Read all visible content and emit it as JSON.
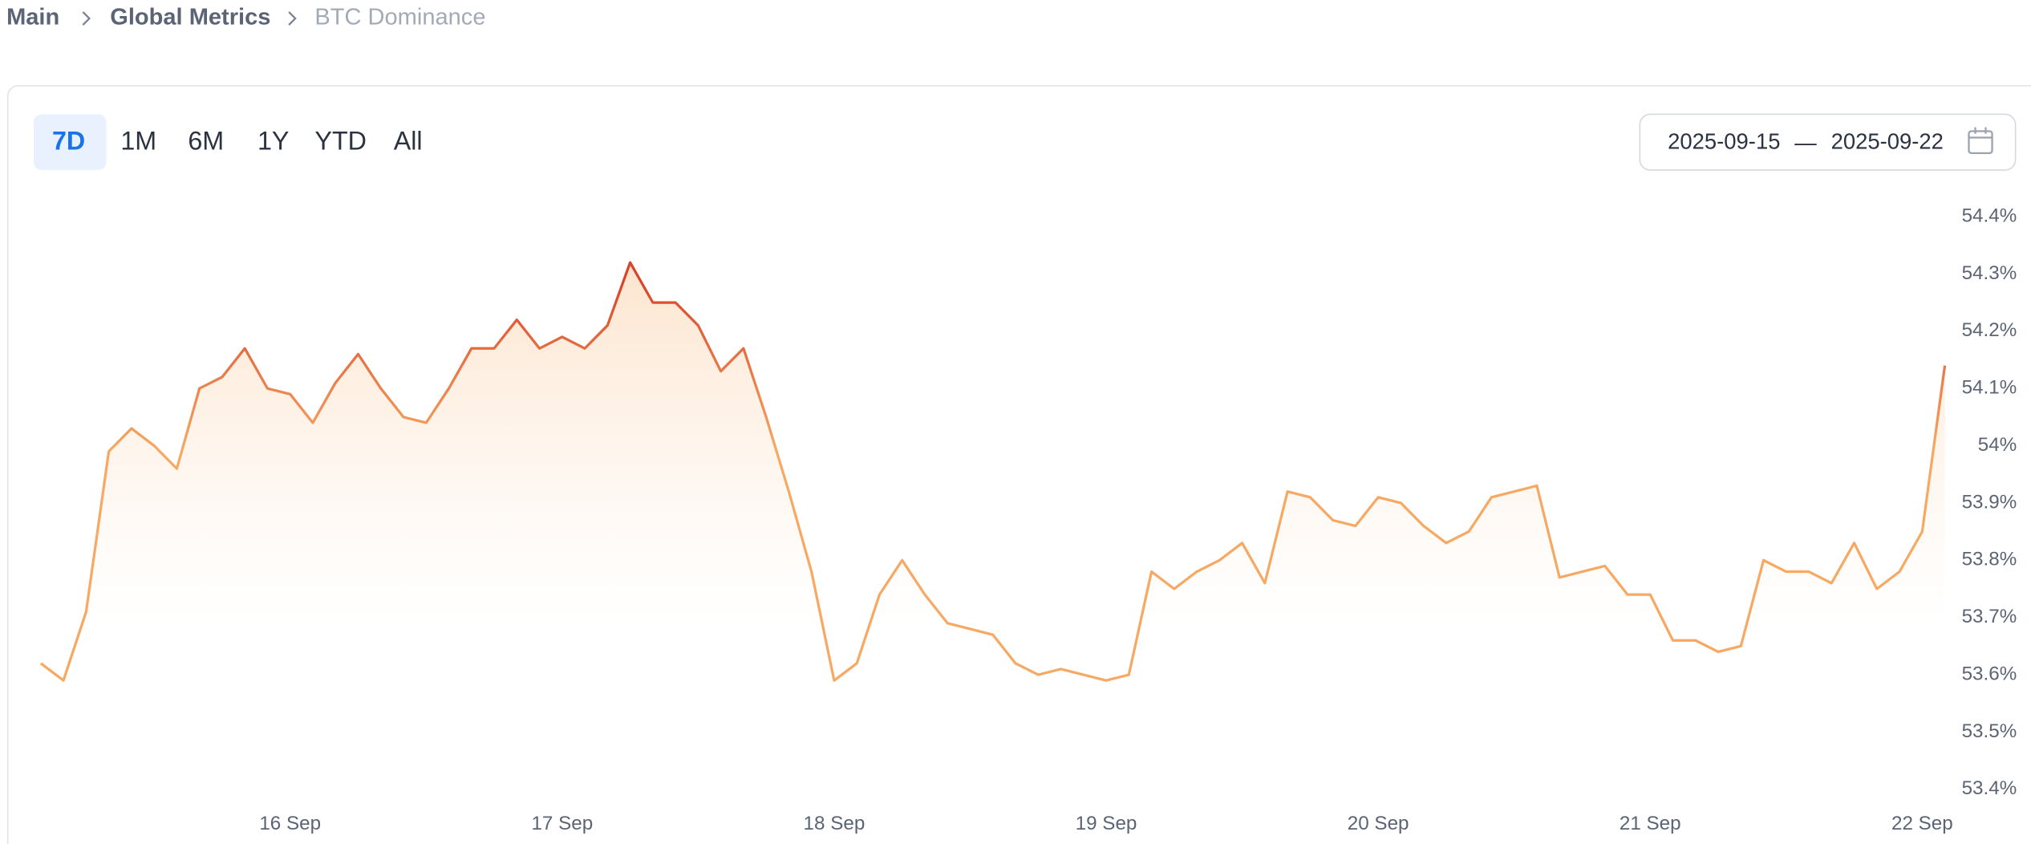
{
  "breadcrumb": [
    "Main",
    "Global Metrics",
    "BTC Dominance"
  ],
  "ranges": [
    "7D",
    "1M",
    "6M",
    "1Y",
    "YTD",
    "All"
  ],
  "date_range": {
    "start": "2025-09-15",
    "separator": "—",
    "end": "2025-09-22"
  },
  "chart_data": {
    "type": "line",
    "categories": [
      null,
      null,
      null,
      null,
      null,
      null,
      null,
      null,
      null,
      null,
      null,
      "16 Sep",
      null,
      null,
      null,
      null,
      null,
      null,
      null,
      null,
      null,
      null,
      null,
      "17 Sep",
      null,
      null,
      null,
      null,
      null,
      null,
      null,
      null,
      null,
      null,
      null,
      "18 Sep",
      null,
      null,
      null,
      null,
      null,
      null,
      null,
      null,
      null,
      null,
      null,
      "19 Sep",
      null,
      null,
      null,
      null,
      null,
      null,
      null,
      null,
      null,
      null,
      null,
      "20 Sep",
      null,
      null,
      null,
      null,
      null,
      null,
      null,
      null,
      null,
      null,
      null,
      "21 Sep",
      null,
      null,
      null,
      null,
      null,
      null,
      null,
      null,
      null,
      null,
      null,
      "22 Sep",
      null
    ],
    "values": [
      53.62,
      53.59,
      53.71,
      53.99,
      54.03,
      54.0,
      53.96,
      54.1,
      54.12,
      54.17,
      54.1,
      54.09,
      54.04,
      54.11,
      54.16,
      54.1,
      54.05,
      54.04,
      54.1,
      54.17,
      54.17,
      54.22,
      54.17,
      54.19,
      54.17,
      54.21,
      54.32,
      54.25,
      54.25,
      54.21,
      54.13,
      54.17,
      54.05,
      53.92,
      53.78,
      53.59,
      53.62,
      53.74,
      53.8,
      53.74,
      53.69,
      53.68,
      53.67,
      53.62,
      53.6,
      53.61,
      53.6,
      53.59,
      53.6,
      53.78,
      53.75,
      53.78,
      53.8,
      53.83,
      53.76,
      53.92,
      53.91,
      53.87,
      53.86,
      53.91,
      53.9,
      53.86,
      53.83,
      53.85,
      53.91,
      53.92,
      53.93,
      53.77,
      53.78,
      53.79,
      53.74,
      53.74,
      53.66,
      53.66,
      53.64,
      53.65,
      53.8,
      53.78,
      53.78,
      53.76,
      53.83,
      53.75,
      53.78,
      53.85,
      54.14
    ],
    "color": [
      "#d9442a",
      "#f7a862"
    ],
    "ylim": [
      53.4,
      54.4
    ],
    "yticks": [
      {
        "value": 53.4,
        "label": "53.4%"
      },
      {
        "value": 53.5,
        "label": "53.5%"
      },
      {
        "value": 53.6,
        "label": "53.6%"
      },
      {
        "value": 53.7,
        "label": "53.7%"
      },
      {
        "value": 53.8,
        "label": "53.8%"
      },
      {
        "value": 53.9,
        "label": "53.9%"
      },
      {
        "value": 54,
        "label": "54%"
      },
      {
        "value": 54.1,
        "label": "54.1%"
      },
      {
        "value": 54.2,
        "label": "54.2%"
      },
      {
        "value": 54.3,
        "label": "54.3%"
      },
      {
        "value": 54.4,
        "label": "54.4%"
      }
    ]
  }
}
